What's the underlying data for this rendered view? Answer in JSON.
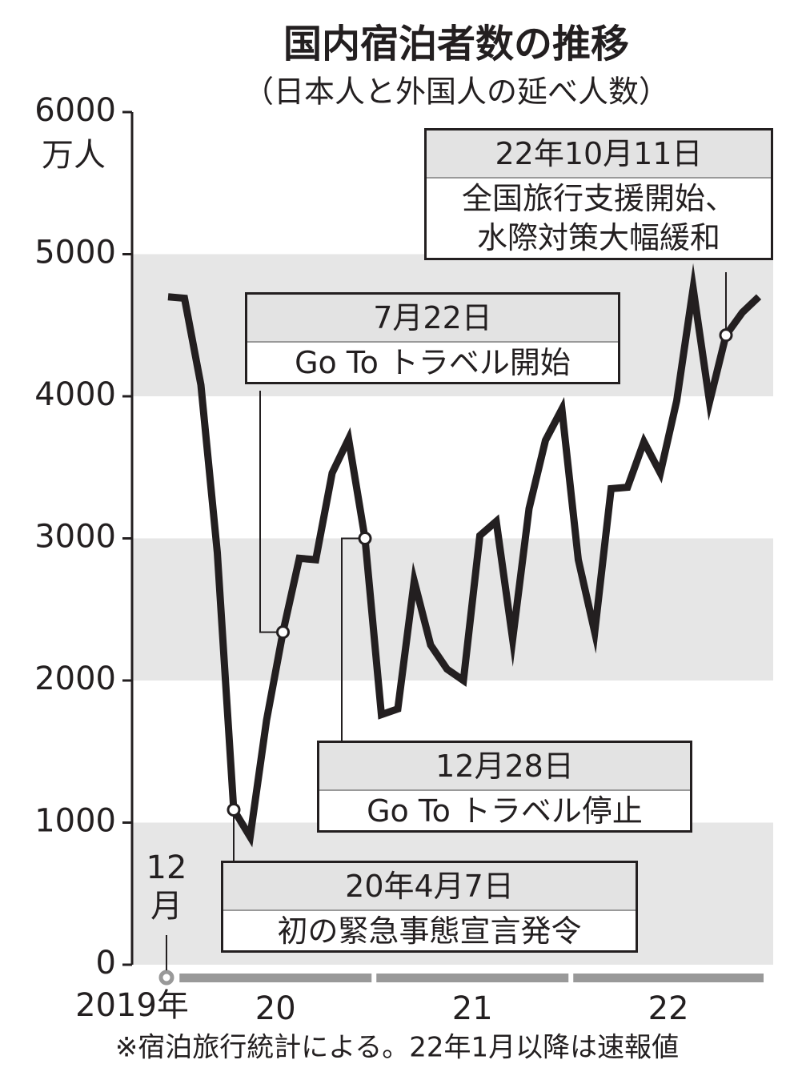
{
  "chart_data": {
    "type": "line",
    "title": "国内宿泊者数の推移",
    "subtitle": "（日本人と外国人の延べ人数）",
    "y_unit": "万人",
    "categories": [
      "12月",
      null,
      null,
      null,
      null,
      null,
      null,
      null,
      null,
      null,
      null,
      null,
      null,
      null,
      null,
      null,
      null,
      null,
      null,
      null,
      null,
      null,
      null,
      null,
      null,
      null,
      null,
      null,
      null,
      null,
      null,
      null,
      null,
      null,
      null,
      null,
      null
    ],
    "year_labels": [
      "2019年",
      "20",
      "21",
      "22"
    ],
    "series": [
      {
        "color": "#231f20",
        "values": [
          4700,
          4690,
          4080,
          2900,
          1090,
          900,
          1720,
          2340,
          2860,
          2850,
          3460,
          3700,
          3000,
          1760,
          1800,
          2700,
          2250,
          2080,
          2000,
          3020,
          3120,
          2290,
          3210,
          3690,
          3910,
          2850,
          2340,
          3350,
          3360,
          3680,
          3460,
          3970,
          4760,
          3960,
          4430,
          4590,
          4700
        ]
      }
    ],
    "ylim": [
      0,
      6000
    ],
    "yticks": [
      0,
      1000,
      2000,
      3000,
      4000,
      5000,
      6000
    ],
    "bands": true,
    "annotations": [
      {
        "date": "20年4月7日",
        "lines": [
          "初の緊急事態宣言発令"
        ]
      },
      {
        "date": "7月22日",
        "lines": [
          "Go To トラベル開始"
        ]
      },
      {
        "date": "12月28日",
        "lines": [
          "Go To トラベル停止"
        ]
      },
      {
        "date": "22年10月11日",
        "lines": [
          "全国旅行支援開始、",
          "水際対策大幅緩和"
        ]
      }
    ],
    "note": "※宿泊旅行統計による。22年1月以降は速報値"
  }
}
